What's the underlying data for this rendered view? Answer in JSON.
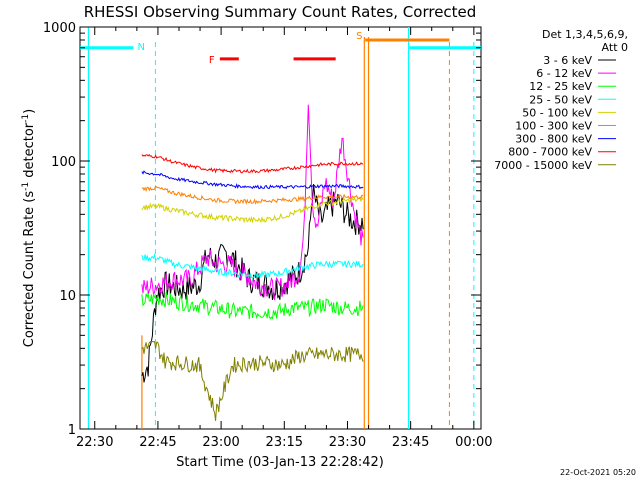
{
  "chart_data": {
    "type": "line",
    "title": "RHESSI Observing Summary Count Rates, Corrected",
    "xlabel": "Start Time (03-Jan-13 22:28:42)",
    "ylabel": "Corrected Count Rate (s⁻¹ detector⁻¹)",
    "ylabel_main": "Corrected Count Rate (s",
    "ylabel_sup1": "-1",
    "ylabel_mid": " detector",
    "ylabel_sup2": "-1",
    "ylabel_end": ")",
    "yscale": "log",
    "ylim": [
      1,
      1000
    ],
    "xlim_minutes_after_2228_42": [
      -2.2,
      93
    ],
    "x_ticks": [
      {
        "label": "22:30",
        "minutes": 1.3
      },
      {
        "label": "22:45",
        "minutes": 16.3
      },
      {
        "label": "23:00",
        "minutes": 31.3
      },
      {
        "label": "23:15",
        "minutes": 46.3
      },
      {
        "label": "23:30",
        "minutes": 61.3
      },
      {
        "label": "23:45",
        "minutes": 76.3
      },
      {
        "label": "00:00",
        "minutes": 91.3
      }
    ],
    "y_ticks": [
      {
        "label": "1",
        "value": 1
      },
      {
        "label": "10",
        "value": 10
      },
      {
        "label": "100",
        "value": 100
      },
      {
        "label": "1000",
        "value": 1000
      }
    ],
    "legend_header": [
      "Det 1,3,4,5,6,9,",
      "Att 0"
    ],
    "legend_position": "right",
    "series": [
      {
        "name": "3 - 6 keV",
        "color": "#000000",
        "points": [
          [
            12.5,
            2.5
          ],
          [
            14,
            3
          ],
          [
            16,
            10
          ],
          [
            18,
            12
          ],
          [
            22,
            11
          ],
          [
            26,
            12
          ],
          [
            28,
            20
          ],
          [
            30,
            18
          ],
          [
            33,
            21
          ],
          [
            35,
            17
          ],
          [
            38,
            13
          ],
          [
            42,
            12
          ],
          [
            44,
            11
          ],
          [
            46,
            12
          ],
          [
            50,
            15
          ],
          [
            52,
            22
          ],
          [
            53,
            60
          ],
          [
            55,
            35
          ],
          [
            57,
            45
          ],
          [
            59,
            50
          ],
          [
            61,
            40
          ],
          [
            63,
            35
          ],
          [
            65,
            35
          ]
        ]
      },
      {
        "name": "6 - 12 keV",
        "color": "#ff00ff",
        "points": [
          [
            12.5,
            11
          ],
          [
            16,
            12
          ],
          [
            20,
            13
          ],
          [
            24,
            13
          ],
          [
            28,
            19
          ],
          [
            30,
            17
          ],
          [
            33,
            17
          ],
          [
            36,
            15
          ],
          [
            40,
            12
          ],
          [
            44,
            11
          ],
          [
            47,
            12
          ],
          [
            50,
            15
          ],
          [
            51,
            30
          ],
          [
            52,
            300
          ],
          [
            53,
            50
          ],
          [
            54,
            30
          ],
          [
            56,
            70
          ],
          [
            58,
            50
          ],
          [
            60,
            150
          ],
          [
            62,
            60
          ],
          [
            63,
            40
          ],
          [
            65,
            24
          ]
        ]
      },
      {
        "name": "12 - 25 keV",
        "color": "#00ff00",
        "points": [
          [
            12.5,
            9
          ],
          [
            16,
            9.5
          ],
          [
            20,
            9
          ],
          [
            25,
            8.5
          ],
          [
            30,
            8
          ],
          [
            35,
            7.5
          ],
          [
            40,
            7.5
          ],
          [
            45,
            7.5
          ],
          [
            48,
            8
          ],
          [
            52,
            8
          ],
          [
            56,
            8.5
          ],
          [
            60,
            8
          ],
          [
            65,
            8
          ]
        ]
      },
      {
        "name": "25 - 50 keV",
        "color": "#00ffff",
        "points": [
          [
            12.5,
            19
          ],
          [
            16,
            19
          ],
          [
            20,
            17
          ],
          [
            25,
            16
          ],
          [
            30,
            15
          ],
          [
            35,
            14.5
          ],
          [
            40,
            14
          ],
          [
            45,
            14.5
          ],
          [
            50,
            16
          ],
          [
            55,
            17
          ],
          [
            60,
            17
          ],
          [
            65,
            17
          ]
        ]
      },
      {
        "name": "50 - 100 keV",
        "color": "#d2d200",
        "points": [
          [
            12.5,
            45
          ],
          [
            16,
            46
          ],
          [
            20,
            43
          ],
          [
            25,
            40
          ],
          [
            30,
            38
          ],
          [
            35,
            37
          ],
          [
            40,
            36
          ],
          [
            45,
            38
          ],
          [
            50,
            42
          ],
          [
            55,
            48
          ],
          [
            60,
            50
          ],
          [
            65,
            52
          ]
        ]
      },
      {
        "name": "100 - 300 keV",
        "color": "#ff8000",
        "points": [
          [
            12.5,
            62
          ],
          [
            16,
            63
          ],
          [
            20,
            58
          ],
          [
            25,
            54
          ],
          [
            30,
            51
          ],
          [
            35,
            50
          ],
          [
            40,
            50
          ],
          [
            45,
            51
          ],
          [
            50,
            52
          ],
          [
            55,
            54
          ],
          [
            60,
            54
          ],
          [
            65,
            54
          ]
        ]
      },
      {
        "name": "300 - 800 keV",
        "color": "#0000ff",
        "points": [
          [
            12.5,
            82
          ],
          [
            16,
            80
          ],
          [
            20,
            74
          ],
          [
            25,
            70
          ],
          [
            30,
            67
          ],
          [
            35,
            65
          ],
          [
            40,
            64
          ],
          [
            45,
            64
          ],
          [
            50,
            64
          ],
          [
            55,
            65
          ],
          [
            60,
            65
          ],
          [
            65,
            64
          ]
        ]
      },
      {
        "name": "800 - 7000 keV",
        "color": "#ff0000",
        "points": [
          [
            12.5,
            110
          ],
          [
            16,
            108
          ],
          [
            20,
            98
          ],
          [
            25,
            90
          ],
          [
            30,
            85
          ],
          [
            35,
            84
          ],
          [
            40,
            84
          ],
          [
            45,
            86
          ],
          [
            50,
            90
          ],
          [
            55,
            94
          ],
          [
            60,
            96
          ],
          [
            65,
            95
          ]
        ]
      },
      {
        "name": "7000 - 15000 keV",
        "color": "#808000",
        "points": [
          [
            12.5,
            4
          ],
          [
            16,
            4.2
          ],
          [
            18,
            3.2
          ],
          [
            22,
            3.1
          ],
          [
            26,
            3.0
          ],
          [
            30,
            1.3
          ],
          [
            34,
            3.0
          ],
          [
            38,
            3.1
          ],
          [
            42,
            3.1
          ],
          [
            46,
            3.0
          ],
          [
            50,
            3.5
          ],
          [
            55,
            3.6
          ],
          [
            60,
            3.6
          ],
          [
            65,
            3.6
          ]
        ]
      }
    ],
    "annotations": {
      "night_label": "N",
      "saa_label": "S",
      "flare_label": "F",
      "night_intervals": [
        [
          -2.2,
          10.5
        ],
        [
          76,
          93
        ]
      ],
      "night_band_value": 700,
      "night_dashed_lines": [
        15.7,
        91.3
      ],
      "night_solid_lines": [
        -0.2,
        75.8
      ],
      "saa_interval": [
        65.5,
        85.5
      ],
      "saa_band_value": 800,
      "saa_lines": [
        65.3,
        66.3,
        85.5
      ],
      "flare_intervals": [
        [
          31,
          35.5
        ],
        [
          48.5,
          58.5
        ]
      ],
      "flare_band_value": 620,
      "flare_lines": [
        12.5
      ]
    },
    "grid": false
  },
  "footer": {
    "timestamp": "22-Oct-2021 05:20"
  }
}
